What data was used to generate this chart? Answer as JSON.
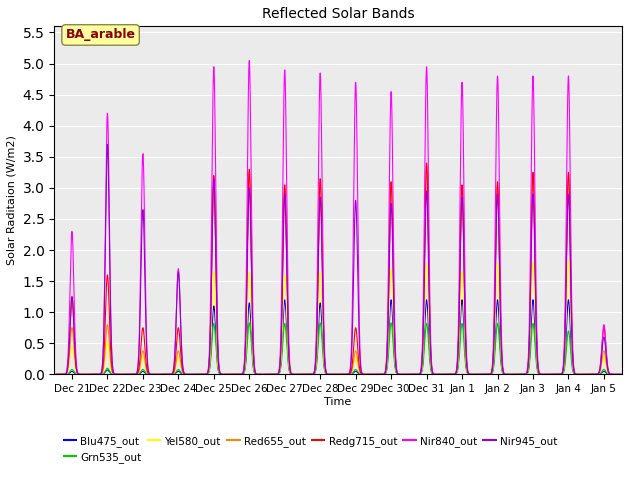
{
  "title": "Reflected Solar Bands",
  "ylabel": "Solar Raditaion (W/m2)",
  "xlabel": "Time",
  "ylim": [
    0,
    5.6
  ],
  "yticks": [
    0.0,
    0.5,
    1.0,
    1.5,
    2.0,
    2.5,
    3.0,
    3.5,
    4.0,
    4.5,
    5.0,
    5.5
  ],
  "annotation": "BA_arable",
  "annotation_color": "#8B0000",
  "annotation_bg": "#FFFFA0",
  "lines": {
    "Blu475_out": {
      "color": "#0000FF",
      "lw": 0.8
    },
    "Grn535_out": {
      "color": "#00CC00",
      "lw": 0.8
    },
    "Yel580_out": {
      "color": "#FFFF00",
      "lw": 0.8
    },
    "Red655_out": {
      "color": "#FF8800",
      "lw": 0.8
    },
    "Redg715_out": {
      "color": "#FF0000",
      "lw": 0.8
    },
    "Nir840_out": {
      "color": "#FF00FF",
      "lw": 0.8
    },
    "Nir945_out": {
      "color": "#9900CC",
      "lw": 0.8
    }
  },
  "n_days": 16,
  "bg_color": "#EBEBEB",
  "fig_bg": "#FFFFFF",
  "peak_scale": {
    "Blu475_out": [
      0.05,
      0.07,
      0.05,
      0.05,
      1.1,
      1.15,
      1.2,
      1.15,
      0.05,
      1.2,
      1.2,
      1.2,
      1.2,
      1.2,
      1.2,
      0.05
    ],
    "Grn535_out": [
      0.08,
      0.1,
      0.08,
      0.08,
      0.82,
      0.83,
      0.82,
      0.83,
      0.08,
      0.83,
      0.82,
      0.82,
      0.82,
      0.82,
      0.7,
      0.08
    ],
    "Yel580_out": [
      0.45,
      0.5,
      0.28,
      0.28,
      1.65,
      1.65,
      1.6,
      1.65,
      0.28,
      1.7,
      1.8,
      1.65,
      1.8,
      1.8,
      1.85,
      0.28
    ],
    "Red655_out": [
      0.75,
      0.8,
      0.38,
      0.38,
      3.1,
      3.25,
      3.0,
      3.1,
      0.38,
      3.05,
      3.35,
      3.0,
      3.05,
      3.2,
      3.2,
      0.38
    ],
    "Redg715_out": [
      1.25,
      1.6,
      0.75,
      0.75,
      3.2,
      3.3,
      3.05,
      3.15,
      0.75,
      3.1,
      3.4,
      3.05,
      3.1,
      3.25,
      3.25,
      0.75
    ],
    "Nir840_out": [
      2.3,
      4.2,
      3.55,
      1.7,
      4.95,
      5.05,
      4.9,
      4.85,
      4.7,
      4.55,
      4.95,
      4.7,
      4.8,
      4.8,
      4.8,
      0.8
    ],
    "Nir945_out": [
      1.25,
      3.7,
      2.65,
      1.65,
      3.15,
      3.0,
      2.9,
      2.85,
      2.8,
      2.75,
      2.95,
      2.85,
      2.9,
      2.9,
      2.9,
      0.6
    ]
  },
  "xtick_labels": [
    "Dec 21",
    "Dec 22",
    "Dec 23",
    "Dec 24",
    "Dec 25",
    "Dec 26",
    "Dec 27",
    "Dec 28",
    "Dec 29",
    "Dec 30",
    "Dec 31",
    "Jan 1",
    "Jan 2",
    "Jan 3",
    "Jan 4",
    "Jan 5"
  ],
  "xtick_positions": [
    0.5,
    1.5,
    2.5,
    3.5,
    4.5,
    5.5,
    6.5,
    7.5,
    8.5,
    9.5,
    10.5,
    11.5,
    12.5,
    13.5,
    14.5,
    15.5
  ],
  "legend_row1": [
    "Blu475_out",
    "Grn535_out",
    "Yel580_out",
    "Red655_out",
    "Redg715_out",
    "Nir840_out"
  ],
  "legend_row2": [
    "Nir945_out"
  ]
}
